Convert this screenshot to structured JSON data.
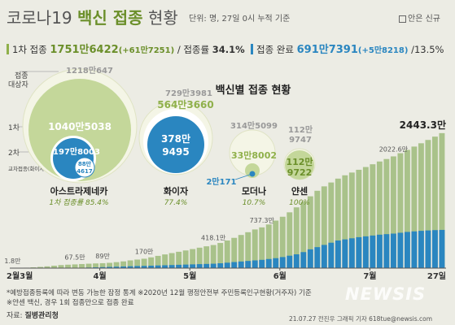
{
  "header": {
    "title_prefix": "코로나19 ",
    "title_highlight": "백신 접종",
    "title_suffix": " 현황",
    "subtitle": "단위: 명, 27일 0시 누적 기준",
    "legend_new": "안은 신규"
  },
  "stats": {
    "first_label": "1차 접종 ",
    "first_value": "1751만6422",
    "first_new": "(+61만7251)",
    "first_rate_label": " / 접종률 ",
    "first_rate": "34.1%",
    "done_label": "접종 완료 ",
    "done_value": "691만7391",
    "done_new": "(+5만8218)",
    "done_rate": " /13.5%",
    "colors": {
      "green": "#8fb04a",
      "blue": "#2a86c0"
    }
  },
  "bubbles": {
    "section_title": "백신별 접종 현황",
    "axis_labels": {
      "target": "접종\n대상자",
      "first": "1차",
      "second": "2차",
      "cross": "교차접종(화이자)"
    },
    "astrazeneca": {
      "name": "아스트라제네카",
      "target": "1218만647",
      "first": "1040만5038",
      "second": "197만8003",
      "cross_a": "88만",
      "cross_b": "4617",
      "note": "1차 접종률 85.4%"
    },
    "pfizer": {
      "name": "화이자",
      "target": "729만3981",
      "first": "564만3660",
      "second_a": "378만",
      "second_b": "9495",
      "note": "77.4%"
    },
    "moderna": {
      "name": "모더나",
      "target": "314만5099",
      "first": "33만8002",
      "second": "2만171",
      "note": "10.7%"
    },
    "janssen": {
      "name": "얀센",
      "target_a": "112만",
      "target_b": "9747",
      "first_a": "112만",
      "first_b": "9722",
      "note": "100%"
    }
  },
  "chart_data": {
    "type": "bar",
    "title": "",
    "x_tick_labels": [
      "2월3월",
      "4월",
      "5월",
      "6월",
      "7월",
      "27일"
    ],
    "series": [
      {
        "name": "1차 접종",
        "color": "#a9c28a"
      },
      {
        "name": "접종 완료",
        "color": "#2a86c0"
      }
    ],
    "annotations": [
      {
        "label": "1.8만",
        "value_10k": 1.8
      },
      {
        "label": "67.5만",
        "value_10k": 67.5
      },
      {
        "label": "89만",
        "value_10k": 89
      },
      {
        "label": "170만",
        "value_10k": 170
      },
      {
        "label": "418.1만",
        "value_10k": 418.1
      },
      {
        "label": "737.3만",
        "value_10k": 737.3
      },
      {
        "label": "2022.6만",
        "value_10k": 2022.6
      },
      {
        "label": "2443.3만",
        "value_10k": 2443.3
      }
    ],
    "first_dose_10k": [
      1.8,
      4,
      8,
      14,
      22,
      32,
      44,
      55,
      62,
      67.5,
      74,
      80,
      85,
      89,
      96,
      108,
      122,
      140,
      155,
      170,
      195,
      222,
      248,
      272,
      296,
      320,
      345,
      370,
      395,
      418.1,
      455,
      500,
      548,
      600,
      650,
      700,
      737.3,
      790,
      860,
      930,
      1010,
      1100,
      1200,
      1300,
      1400,
      1480,
      1550,
      1620,
      1680,
      1730,
      1780,
      1830,
      1880,
      1930,
      1975,
      2022.6,
      2080,
      2140,
      2200,
      2260,
      2320,
      2380,
      2443.3
    ],
    "full_dose_10k": [
      0,
      0,
      0,
      0,
      0,
      0,
      0,
      1,
      2,
      3,
      6,
      10,
      14,
      18,
      22,
      26,
      30,
      34,
      38,
      40,
      44,
      48,
      52,
      56,
      60,
      64,
      68,
      72,
      76,
      80,
      88,
      98,
      110,
      120,
      130,
      140,
      150,
      165,
      180,
      200,
      225,
      250,
      290,
      340,
      380,
      420,
      460,
      500,
      520,
      540,
      560,
      575,
      590,
      605,
      615,
      625,
      640,
      655,
      665,
      675,
      682,
      688,
      691.7
    ],
    "ylim": [
      0,
      2500
    ]
  },
  "footer": {
    "note": "*예방접종등록에 따라 변동 가능한 잠정 통계  ※2020년 12월 행정안전부 주민등록인구현황(거주자) 기준",
    "note2": "※얀센 백신, 경우 1회 접종만으로 접종 완료",
    "source_label": "자료: ",
    "source": "질병관리청",
    "credit": "21.07.27  전진우 그래픽 기자 618tue@newsis.com",
    "watermark": "NEWSIS"
  }
}
